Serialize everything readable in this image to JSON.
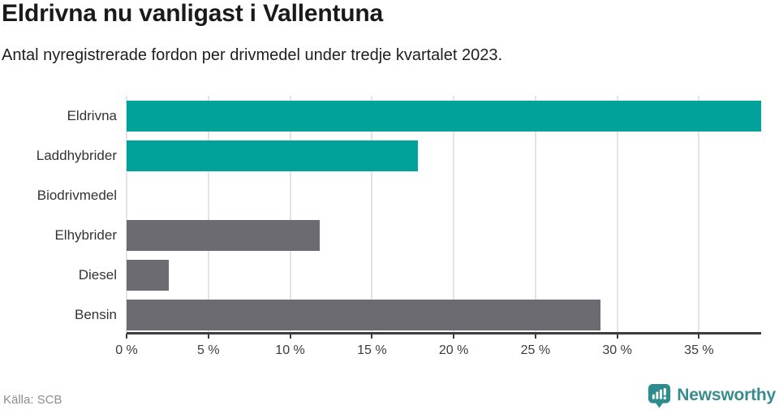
{
  "page": {
    "title": "Eldrivna nu vanligast i Vallentuna",
    "subtitle": "Antal nyregistrerade fordon per drivmedel under tredje kvartalet 2023.",
    "source": "Källa: SCB",
    "brand": "Newsworthy"
  },
  "colors": {
    "accent_teal": "#00a29a",
    "bar_gray": "#6b6b71",
    "gridline": "#e4e4e4",
    "axis": "#3d3d3d",
    "brand_teal": "#2e8c8e",
    "brand_text": "#3a8b90"
  },
  "chart_data": {
    "type": "bar",
    "orientation": "horizontal",
    "title": "Eldrivna nu vanligast i Vallentuna",
    "subtitle": "Antal nyregistrerade fordon per drivmedel under tredje kvartalet 2023.",
    "categories": [
      "Eldrivna",
      "Laddhybrider",
      "Biodrivmedel",
      "Elhybrider",
      "Diesel",
      "Bensin"
    ],
    "values": [
      38.8,
      17.8,
      0,
      11.8,
      2.6,
      29.0
    ],
    "unit": "%",
    "bar_colors": [
      "#00a29a",
      "#00a29a",
      "#6b6b71",
      "#6b6b71",
      "#6b6b71",
      "#6b6b71"
    ],
    "xlim": [
      0,
      38.8
    ],
    "xticks": [
      0,
      5,
      10,
      15,
      20,
      25,
      30,
      35
    ],
    "xtick_suffix": " %",
    "grid": true,
    "legend": "none"
  }
}
